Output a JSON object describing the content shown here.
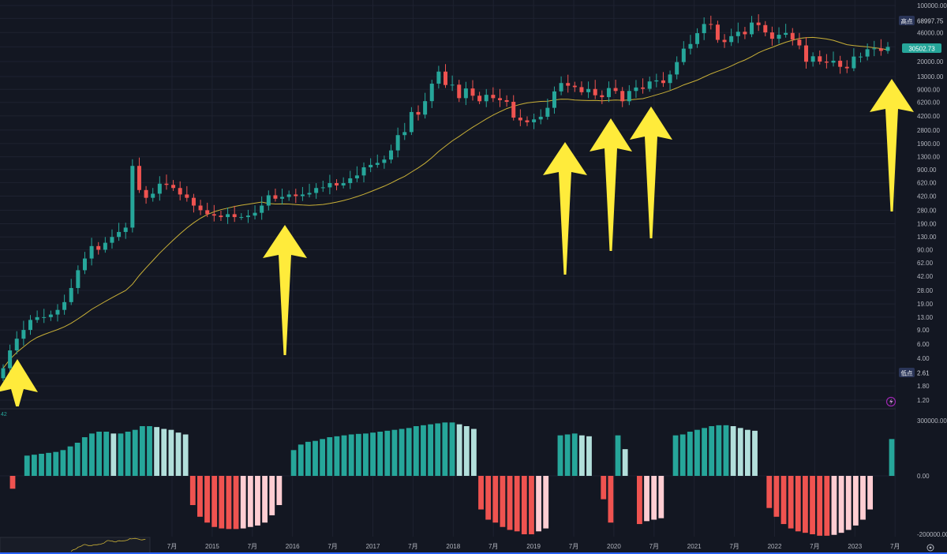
{
  "colors": {
    "background": "#131722",
    "grid": "#1e2230",
    "up": "#26a69a",
    "down": "#ef5350",
    "up_light": "#b2dfdb",
    "down_light": "#ffcdd2",
    "ma": "#c9b037",
    "arrow": "#ffeb3b",
    "axis_text": "#b2b5be",
    "badge_bg": "#2a3558",
    "price_badge_bg": "#26a69a"
  },
  "price_axis": {
    "labels": [
      "100000.00",
      "68997.75",
      "46000.00",
      "30502.73",
      "20000.00",
      "13000.00",
      "9000.00",
      "6200.00",
      "4200.00",
      "2800.00",
      "1900.00",
      "1300.00",
      "900.00",
      "620.00",
      "420.00",
      "280.00",
      "190.00",
      "130.00",
      "90.00",
      "62.00",
      "42.00",
      "28.00",
      "19.00",
      "13.00",
      "9.00",
      "6.00",
      "4.00",
      "2.61",
      "1.80",
      "1.20"
    ],
    "high_label": "高​点",
    "high_value": "68997.75",
    "low_label": "低​点",
    "low_value": "2.61",
    "current_value": "30502.73",
    "scale": "log"
  },
  "osc_axis": {
    "labels": [
      "300000.00",
      "0.00",
      "-200000.00"
    ],
    "corner_label": "42"
  },
  "time_axis": {
    "labels": [
      "7月",
      "2015",
      "7月",
      "2016",
      "7月",
      "2017",
      "7月",
      "2018",
      "7月",
      "2019",
      "7月",
      "2020",
      "7月",
      "2021",
      "7月",
      "2022",
      "7月",
      "2023",
      "7月"
    ]
  },
  "chart_data": [
    {
      "type": "candlestick",
      "interval": "monthly",
      "y_scale": "log",
      "ylim": [
        1.0,
        100000
      ],
      "series": [
        {
          "name": "",
          "closes": [
            3.0,
            5.0,
            7.0,
            9.0,
            12.0,
            13.0,
            13.0,
            14.0,
            16.0,
            20.0,
            30.0,
            50.0,
            70.0,
            100.0,
            90.0,
            110.0,
            130.0,
            150.0,
            170.0,
            1000.0,
            500.0,
            400.0,
            450.0,
            600.0,
            580.0,
            530.0,
            440.0,
            400.0,
            320.0,
            280.0,
            250.0,
            240.0,
            230.0,
            250.0,
            230.0,
            230.0,
            240.0,
            260.0,
            320.0,
            430.0,
            390.0,
            410.0,
            440.0,
            420.0,
            440.0,
            460.0,
            530.0,
            540.0,
            610.0,
            570.0,
            610.0,
            700.0,
            760.0,
            960.0,
            1030.0,
            1090.0,
            1200.0,
            1560.0,
            2420.0,
            2640.0,
            4700.0,
            4360.0,
            6420.0,
            10600.0,
            15000.0,
            10200.0,
            10300.0,
            7000.0,
            9240.0,
            7500.0,
            6400.0,
            7700.0,
            7000.0,
            6600.0,
            6300.0,
            4000.0,
            3700.0,
            3500.0,
            3800.0,
            4100.0,
            5300.0,
            8500.0,
            10800.0,
            10000.0,
            9600.0,
            8300.0,
            9100.0,
            7600.0,
            7200.0,
            9350.0,
            8600.0,
            6400.0,
            8600.0,
            9500.0,
            9150.0,
            11300.0,
            11650.0,
            10800.0,
            13800.0,
            19700.0,
            29000.0,
            33100.0,
            45200.0,
            58800.0,
            57750.0,
            37300.0,
            35000.0,
            41500.0,
            47100.0,
            43800.0,
            61300.0,
            57000.0,
            46200.0,
            38500.0,
            43200.0,
            45500.0,
            37600.0,
            31800.0,
            19900.0,
            23300.0,
            20000.0,
            19400.0,
            20500.0,
            17200.0,
            16500.0,
            23100.0,
            23100.0,
            28500.0,
            29200.0,
            27200.0,
            30500.0
          ],
          "ma_period": 20
        }
      ]
    },
    {
      "type": "bar",
      "name": "oscillator",
      "ylim": [
        -200000,
        300000
      ],
      "values": [
        -44000,
        0,
        110000,
        115000,
        120000,
        125000,
        130000,
        140000,
        160000,
        180000,
        210000,
        230000,
        240000,
        240000,
        230000,
        230000,
        240000,
        250000,
        270000,
        270000,
        265000,
        255000,
        250000,
        235000,
        225000,
        -100000,
        -140000,
        -160000,
        -175000,
        -180000,
        -182000,
        -182000,
        -180000,
        -175000,
        -170000,
        -160000,
        -135000,
        -100000,
        0,
        140000,
        170000,
        185000,
        190000,
        200000,
        210000,
        215000,
        220000,
        225000,
        228000,
        230000,
        235000,
        240000,
        245000,
        250000,
        255000,
        260000,
        270000,
        275000,
        280000,
        285000,
        290000,
        290000,
        280000,
        270000,
        255000,
        -115000,
        -150000,
        -160000,
        -175000,
        -185000,
        -190000,
        -200000,
        -200000,
        -190000,
        -180000,
        0,
        220000,
        225000,
        230000,
        220000,
        215000,
        0,
        -80000,
        -160000,
        220000,
        145000,
        0,
        -165000,
        -155000,
        -150000,
        -145000,
        0,
        220000,
        225000,
        240000,
        250000,
        260000,
        270000,
        275000,
        275000,
        270000,
        260000,
        250000,
        245000,
        0,
        -110000,
        -140000,
        -165000,
        -180000,
        -190000,
        -195000,
        -200000,
        -205000,
        -205000,
        -202000,
        -195000,
        -185000,
        -170000,
        -150000,
        -115000,
        0,
        0,
        200000
      ],
      "colors": "sign_and_momentum"
    }
  ],
  "annotations": {
    "arrows": [
      {
        "name": "arrow-1",
        "direction": "up"
      },
      {
        "name": "arrow-2",
        "direction": "up"
      },
      {
        "name": "arrow-3",
        "direction": "up"
      },
      {
        "name": "arrow-4",
        "direction": "up"
      },
      {
        "name": "arrow-5",
        "direction": "up"
      },
      {
        "name": "arrow-6",
        "direction": "up"
      }
    ]
  },
  "icons": {
    "lightning": "lightning-icon",
    "settings": "settings-icon"
  }
}
